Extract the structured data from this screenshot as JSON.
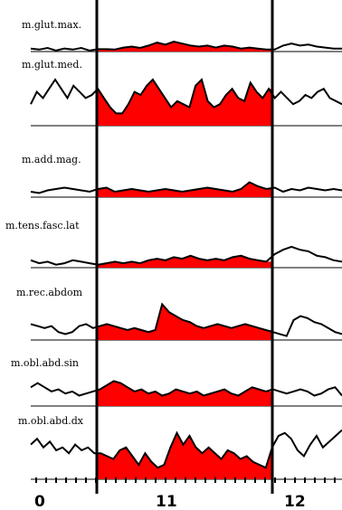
{
  "chart_data": {
    "type": "area",
    "title": "",
    "xlabel": "",
    "ylabel": "",
    "x_ticks": [
      "0",
      "11",
      "12"
    ],
    "highlight_color": "#ff0000",
    "line_color": "#000000",
    "grid": false,
    "series": [
      {
        "name": "m.glut.max.",
        "values": [
          0.15,
          0.1,
          0.18,
          0.05,
          0.15,
          0.1,
          0.18,
          0.05,
          0.12,
          0.12,
          0.1,
          0.2,
          0.25,
          0.18,
          0.3,
          0.45,
          0.35,
          0.5,
          0.4,
          0.3,
          0.25,
          0.3,
          0.2,
          0.3,
          0.25,
          0.15,
          0.2,
          0.15,
          0.1,
          0.1,
          0.3,
          0.4,
          0.3,
          0.35,
          0.25,
          0.2,
          0.15,
          0.15
        ]
      },
      {
        "name": "m.glut.med.",
        "values": [
          0.35,
          0.55,
          0.45,
          0.6,
          0.75,
          0.6,
          0.45,
          0.65,
          0.55,
          0.45,
          0.5,
          0.6,
          0.45,
          0.3,
          0.2,
          0.2,
          0.35,
          0.55,
          0.5,
          0.65,
          0.75,
          0.6,
          0.45,
          0.3,
          0.4,
          0.35,
          0.3,
          0.65,
          0.75,
          0.4,
          0.3,
          0.35,
          0.5,
          0.6,
          0.45,
          0.4,
          0.7,
          0.55,
          0.45,
          0.6,
          0.45,
          0.55,
          0.45,
          0.35,
          0.4,
          0.5,
          0.45,
          0.55,
          0.6,
          0.45,
          0.4,
          0.35
        ]
      },
      {
        "name": "m.add.mag.",
        "values": [
          0.2,
          0.15,
          0.25,
          0.3,
          0.35,
          0.3,
          0.25,
          0.2,
          0.3,
          0.35,
          0.2,
          0.25,
          0.3,
          0.25,
          0.2,
          0.25,
          0.3,
          0.25,
          0.2,
          0.25,
          0.3,
          0.35,
          0.3,
          0.25,
          0.2,
          0.3,
          0.55,
          0.4,
          0.3,
          0.35,
          0.2,
          0.3,
          0.25,
          0.35,
          0.3,
          0.25,
          0.3,
          0.25
        ]
      },
      {
        "name": "m.tens.fasc.lat",
        "values": [
          0.25,
          0.15,
          0.2,
          0.1,
          0.15,
          0.25,
          0.2,
          0.15,
          0.1,
          0.15,
          0.2,
          0.15,
          0.2,
          0.15,
          0.25,
          0.3,
          0.25,
          0.35,
          0.3,
          0.4,
          0.3,
          0.25,
          0.3,
          0.25,
          0.35,
          0.4,
          0.3,
          0.25,
          0.2,
          0.45,
          0.6,
          0.7,
          0.6,
          0.55,
          0.4,
          0.35,
          0.25,
          0.2
        ]
      },
      {
        "name": "m.rec.abdom",
        "values": [
          0.4,
          0.35,
          0.3,
          0.35,
          0.2,
          0.15,
          0.2,
          0.35,
          0.4,
          0.3,
          0.35,
          0.4,
          0.35,
          0.3,
          0.25,
          0.3,
          0.25,
          0.2,
          0.25,
          0.9,
          0.7,
          0.6,
          0.5,
          0.45,
          0.35,
          0.3,
          0.35,
          0.4,
          0.35,
          0.3,
          0.35,
          0.4,
          0.35,
          0.3,
          0.25,
          0.2,
          0.15,
          0.1,
          0.5,
          0.6,
          0.55,
          0.45,
          0.4,
          0.3,
          0.2,
          0.15
        ]
      },
      {
        "name": "m.obl.abd.sin",
        "values": [
          0.45,
          0.55,
          0.45,
          0.35,
          0.4,
          0.3,
          0.35,
          0.25,
          0.3,
          0.35,
          0.4,
          0.5,
          0.6,
          0.55,
          0.45,
          0.35,
          0.4,
          0.3,
          0.35,
          0.25,
          0.3,
          0.4,
          0.35,
          0.3,
          0.35,
          0.25,
          0.3,
          0.35,
          0.4,
          0.3,
          0.25,
          0.35,
          0.45,
          0.4,
          0.35,
          0.4,
          0.35,
          0.3,
          0.35,
          0.4,
          0.35,
          0.25,
          0.3,
          0.4,
          0.45,
          0.25
        ]
      },
      {
        "name": "m.obl.abd.dx",
        "values": [
          0.6,
          0.7,
          0.55,
          0.65,
          0.5,
          0.55,
          0.45,
          0.6,
          0.5,
          0.55,
          0.45,
          0.45,
          0.4,
          0.35,
          0.5,
          0.55,
          0.4,
          0.25,
          0.45,
          0.3,
          0.2,
          0.25,
          0.55,
          0.8,
          0.6,
          0.75,
          0.55,
          0.45,
          0.55,
          0.45,
          0.35,
          0.5,
          0.45,
          0.35,
          0.4,
          0.3,
          0.25,
          0.2,
          0.55,
          0.75,
          0.8,
          0.7,
          0.5,
          0.4,
          0.6,
          0.75,
          0.55,
          0.65,
          0.75,
          0.85
        ]
      }
    ]
  }
}
